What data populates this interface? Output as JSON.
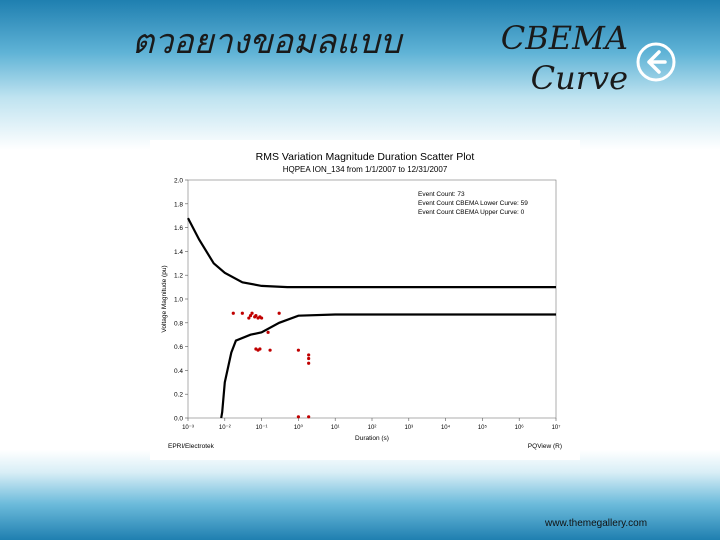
{
  "slide": {
    "title_left": "ตวอยางขอมลแบบ",
    "title_right_line1": "CBEMA",
    "title_right_line2": "Curve",
    "footer_url": "www.themegallery.com",
    "icons": {
      "back": "back-arrow-icon"
    },
    "colors": {
      "accent": "#1f7fb0"
    }
  },
  "chart_data": {
    "type": "scatter",
    "title": "RMS Variation Magnitude Duration Scatter Plot",
    "subtitle": "HQPEA ION_134 from 1/1/2007 to 12/31/2007",
    "xlabel": "Duration (s)",
    "ylabel": "Voltage Magnitude (pu)",
    "x_scale": "log",
    "x_tick_labels": [
      "10⁻³",
      "10⁻²",
      "10⁻¹",
      "10⁰",
      "10¹",
      "10²",
      "10³",
      "10⁴",
      "10⁵",
      "10⁶",
      "10⁷"
    ],
    "xlim": [
      0.001,
      10000000
    ],
    "ylim": [
      0,
      2.0
    ],
    "y_ticks": [
      "0.0",
      "0.2",
      "0.4",
      "0.6",
      "0.8",
      "1.0",
      "1.2",
      "1.4",
      "1.6",
      "1.8",
      "2.0"
    ],
    "legend_placement": "top-right",
    "annotations": [
      "Event Count: 73",
      "Event Count CBEMA Lower Curve: 59",
      "Event Count CBEMA Upper Curve: 0"
    ],
    "corner_left": "EPRI/Electrotek",
    "corner_right": "PQView (R)",
    "series": [
      {
        "color": "#000000",
        "points": [
          [
            0.001,
            1.68
          ],
          [
            0.002,
            1.5
          ],
          [
            0.005,
            1.3
          ],
          [
            0.01,
            1.22
          ],
          [
            0.03,
            1.14
          ],
          [
            0.1,
            1.11
          ],
          [
            0.5,
            1.1
          ],
          [
            10,
            1.1
          ],
          [
            1000,
            1.1
          ],
          [
            10000000,
            1.1
          ]
        ]
      },
      {
        "color": "#000000",
        "points": [
          [
            0.008,
            0
          ],
          [
            0.0085,
            0.05
          ],
          [
            0.01,
            0.3
          ],
          [
            0.015,
            0.55
          ],
          [
            0.02,
            0.65
          ],
          [
            0.05,
            0.7
          ],
          [
            0.1,
            0.72
          ],
          [
            0.3,
            0.8
          ],
          [
            1,
            0.86
          ],
          [
            10,
            0.87
          ],
          [
            10000000,
            0.87
          ]
        ]
      },
      {
        "color": "#c00000",
        "points": [
          [
            0.017,
            0.88
          ],
          [
            0.03,
            0.88
          ],
          [
            0.045,
            0.84
          ],
          [
            0.05,
            0.86
          ],
          [
            0.055,
            0.88
          ],
          [
            0.065,
            0.85
          ],
          [
            0.07,
            0.86
          ],
          [
            0.08,
            0.84
          ],
          [
            0.09,
            0.85
          ],
          [
            0.1,
            0.84
          ],
          [
            0.3,
            0.88
          ],
          [
            0.15,
            0.72
          ],
          [
            0.07,
            0.58
          ],
          [
            0.08,
            0.57
          ],
          [
            0.09,
            0.58
          ],
          [
            0.17,
            0.57
          ],
          [
            1.0,
            0.57
          ],
          [
            1.9,
            0.53
          ],
          [
            1.9,
            0.5
          ],
          [
            1.9,
            0.46
          ],
          [
            1.0,
            0.01
          ],
          [
            1.9,
            0.01
          ]
        ]
      }
    ]
  }
}
